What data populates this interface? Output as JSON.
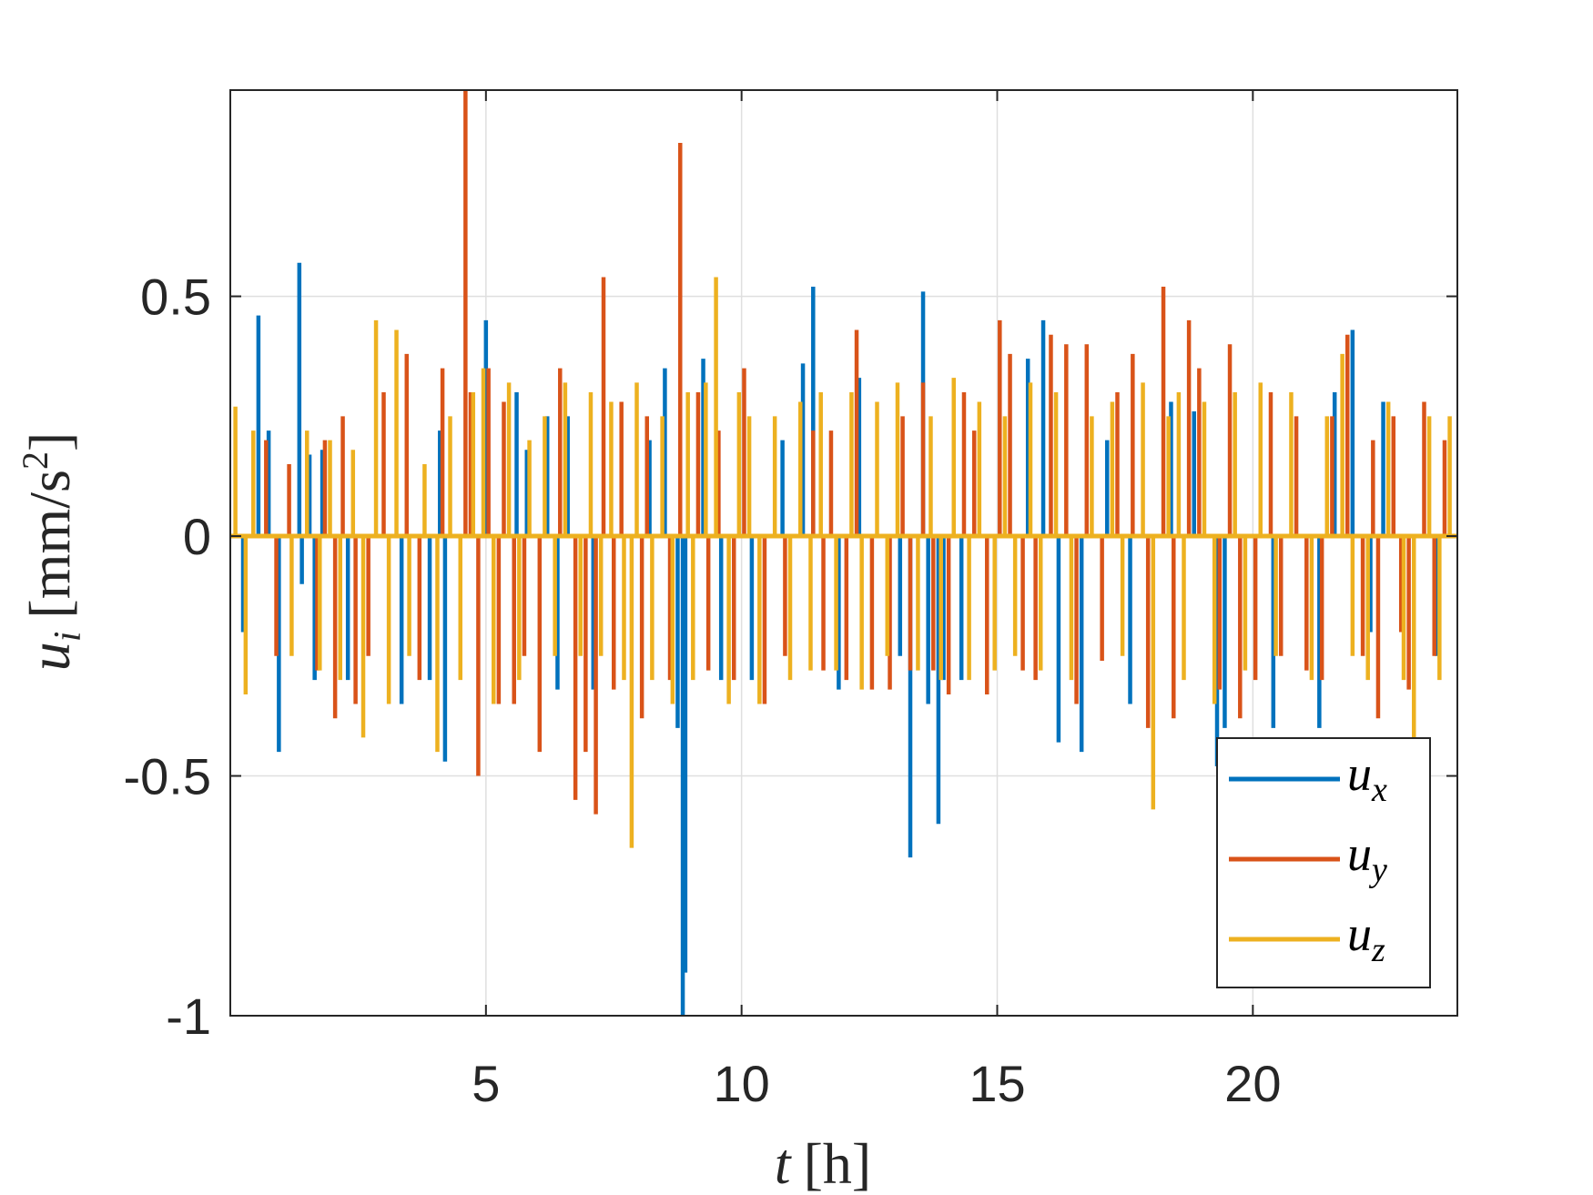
{
  "chart_data": {
    "type": "stem",
    "xlabel_var": "t",
    "xlabel_unit": "[h]",
    "ylabel_var": "u",
    "ylabel_sub": "i",
    "ylabel_unit": "[mm/s",
    "ylabel_sup": "2",
    "ylabel_close": "]",
    "xlim": [
      0,
      24
    ],
    "ylim": [
      -1,
      0.93
    ],
    "xticks": [
      5,
      10,
      15,
      20
    ],
    "xtick_labels": [
      "5",
      "10",
      "15",
      "20"
    ],
    "yticks": [
      -1,
      -0.5,
      0,
      0.5
    ],
    "ytick_labels": [
      "-1",
      "-0.5",
      "0",
      "0.5"
    ],
    "grid": true,
    "legend_position": "bottom-right",
    "series": [
      {
        "name": "u",
        "sub": "x",
        "color": "#0072BD",
        "x": [
          0.25,
          0.55,
          0.75,
          0.95,
          1.35,
          1.4,
          1.55,
          1.65,
          1.8,
          2.3,
          3.35,
          3.9,
          4.1,
          4.2,
          5.0,
          5.6,
          5.8,
          6.2,
          6.4,
          6.6,
          7.1,
          8.2,
          8.5,
          8.75,
          8.85,
          8.9,
          9.25,
          9.6,
          10.2,
          10.8,
          11.2,
          11.4,
          11.9,
          12.3,
          13.1,
          13.3,
          13.55,
          13.65,
          13.85,
          13.95,
          14.3,
          15.6,
          15.9,
          16.2,
          16.65,
          17.15,
          17.6,
          18.4,
          18.85,
          19.3,
          19.45,
          20.4,
          21.3,
          21.6,
          21.95,
          22.3,
          22.55,
          23.6
        ],
        "y": [
          -0.2,
          0.46,
          0.22,
          -0.45,
          0.57,
          -0.1,
          0.17,
          -0.3,
          0.18,
          -0.3,
          -0.35,
          -0.3,
          0.22,
          -0.47,
          0.45,
          0.3,
          0.18,
          0.25,
          -0.32,
          0.25,
          -0.32,
          0.2,
          0.35,
          -0.4,
          -1.0,
          -0.91,
          0.37,
          -0.3,
          -0.3,
          0.2,
          0.36,
          0.52,
          -0.32,
          0.33,
          -0.25,
          -0.67,
          0.51,
          -0.35,
          -0.6,
          -0.3,
          -0.3,
          0.37,
          0.45,
          -0.43,
          -0.45,
          0.2,
          -0.35,
          0.28,
          0.26,
          -0.48,
          -0.4,
          -0.4,
          -0.4,
          0.3,
          0.43,
          -0.2,
          0.28,
          -0.25
        ]
      },
      {
        "name": "u",
        "sub": "y",
        "color": "#D95319",
        "x": [
          0.7,
          0.9,
          1.15,
          1.7,
          1.85,
          2.05,
          2.2,
          2.45,
          2.7,
          3.0,
          3.45,
          3.7,
          4.15,
          4.6,
          4.7,
          4.85,
          5.05,
          5.25,
          5.35,
          5.55,
          5.75,
          6.05,
          6.45,
          6.75,
          6.95,
          7.15,
          7.3,
          7.5,
          7.65,
          8.05,
          8.15,
          8.6,
          8.8,
          9.15,
          9.35,
          9.55,
          9.85,
          10.05,
          10.45,
          10.85,
          11.4,
          11.6,
          11.75,
          12.05,
          12.25,
          12.55,
          12.9,
          13.15,
          13.3,
          13.55,
          13.75,
          14.05,
          14.35,
          14.55,
          14.8,
          15.05,
          15.25,
          15.5,
          15.75,
          16.05,
          16.35,
          16.55,
          16.75,
          17.05,
          17.35,
          17.65,
          17.95,
          18.25,
          18.45,
          18.75,
          18.95,
          19.35,
          19.55,
          19.75,
          20.05,
          20.35,
          20.55,
          20.85,
          21.05,
          21.35,
          21.55,
          21.85,
          22.15,
          22.35,
          22.45,
          22.75,
          22.9,
          23.05,
          23.35,
          23.55,
          23.75
        ],
        "y": [
          0.2,
          -0.25,
          0.15,
          -0.28,
          0.2,
          -0.38,
          0.25,
          -0.35,
          -0.25,
          0.3,
          0.38,
          -0.3,
          0.35,
          0.93,
          0.3,
          -0.5,
          0.35,
          -0.35,
          0.28,
          -0.35,
          -0.25,
          -0.45,
          0.35,
          -0.55,
          -0.45,
          -0.58,
          0.54,
          -0.32,
          0.28,
          -0.38,
          0.25,
          -0.3,
          0.82,
          0.3,
          -0.28,
          0.22,
          -0.3,
          0.35,
          -0.35,
          -0.25,
          0.22,
          -0.28,
          0.22,
          -0.3,
          0.43,
          -0.32,
          -0.32,
          0.25,
          -0.28,
          0.32,
          -0.28,
          -0.33,
          0.3,
          0.22,
          -0.33,
          0.45,
          0.38,
          -0.28,
          -0.3,
          0.42,
          0.4,
          -0.35,
          0.4,
          -0.26,
          0.3,
          0.38,
          -0.4,
          0.52,
          -0.38,
          0.45,
          0.35,
          -0.32,
          0.4,
          -0.38,
          -0.3,
          0.3,
          -0.25,
          0.25,
          -0.28,
          -0.3,
          0.25,
          0.42,
          -0.25,
          0.2,
          -0.38,
          0.25,
          -0.2,
          -0.32,
          0.28,
          -0.25,
          0.2
        ]
      },
      {
        "name": "u",
        "sub": "z",
        "color": "#EDB120",
        "x": [
          0.1,
          0.3,
          0.45,
          1.2,
          1.5,
          1.75,
          1.95,
          2.15,
          2.4,
          2.6,
          2.85,
          3.1,
          3.25,
          3.5,
          3.8,
          4.05,
          4.3,
          4.5,
          4.75,
          4.95,
          5.15,
          5.45,
          5.65,
          5.85,
          6.15,
          6.35,
          6.55,
          6.85,
          7.05,
          7.25,
          7.45,
          7.7,
          7.85,
          7.95,
          8.25,
          8.45,
          8.65,
          8.95,
          9.05,
          9.3,
          9.5,
          9.75,
          9.95,
          10.15,
          10.35,
          10.65,
          10.95,
          11.15,
          11.35,
          11.55,
          11.85,
          12.15,
          12.35,
          12.65,
          12.85,
          13.05,
          13.45,
          13.7,
          13.9,
          14.15,
          14.45,
          14.65,
          14.95,
          15.15,
          15.35,
          15.65,
          15.85,
          16.15,
          16.45,
          16.85,
          17.25,
          17.45,
          17.85,
          18.05,
          18.35,
          18.55,
          18.65,
          19.05,
          19.25,
          19.65,
          19.85,
          20.15,
          20.45,
          20.75,
          21.15,
          21.45,
          21.75,
          21.95,
          22.25,
          22.65,
          22.95,
          23.15,
          23.45,
          23.65,
          23.85
        ],
        "y": [
          0.27,
          -0.33,
          0.22,
          -0.25,
          0.22,
          -0.28,
          0.2,
          -0.3,
          0.18,
          -0.42,
          0.45,
          -0.35,
          0.43,
          -0.25,
          0.15,
          -0.45,
          0.25,
          -0.3,
          0.3,
          0.35,
          -0.35,
          0.32,
          -0.3,
          0.2,
          0.25,
          -0.25,
          0.32,
          -0.25,
          0.3,
          -0.25,
          0.28,
          -0.3,
          -0.65,
          0.32,
          -0.3,
          0.25,
          -0.35,
          0.3,
          -0.3,
          0.32,
          0.54,
          -0.35,
          0.3,
          0.25,
          -0.35,
          0.25,
          -0.3,
          0.28,
          -0.28,
          0.3,
          -0.28,
          0.3,
          -0.32,
          0.28,
          -0.25,
          0.32,
          -0.28,
          0.25,
          -0.3,
          0.33,
          -0.3,
          0.28,
          -0.28,
          0.25,
          -0.25,
          0.32,
          -0.28,
          0.3,
          -0.3,
          0.25,
          0.28,
          -0.25,
          0.32,
          -0.57,
          0.25,
          0.3,
          -0.3,
          0.28,
          -0.35,
          0.3,
          -0.28,
          0.32,
          -0.25,
          0.3,
          -0.3,
          0.25,
          0.38,
          -0.25,
          -0.3,
          0.28,
          -0.3,
          -0.48,
          0.25,
          -0.3,
          0.25
        ]
      }
    ]
  }
}
